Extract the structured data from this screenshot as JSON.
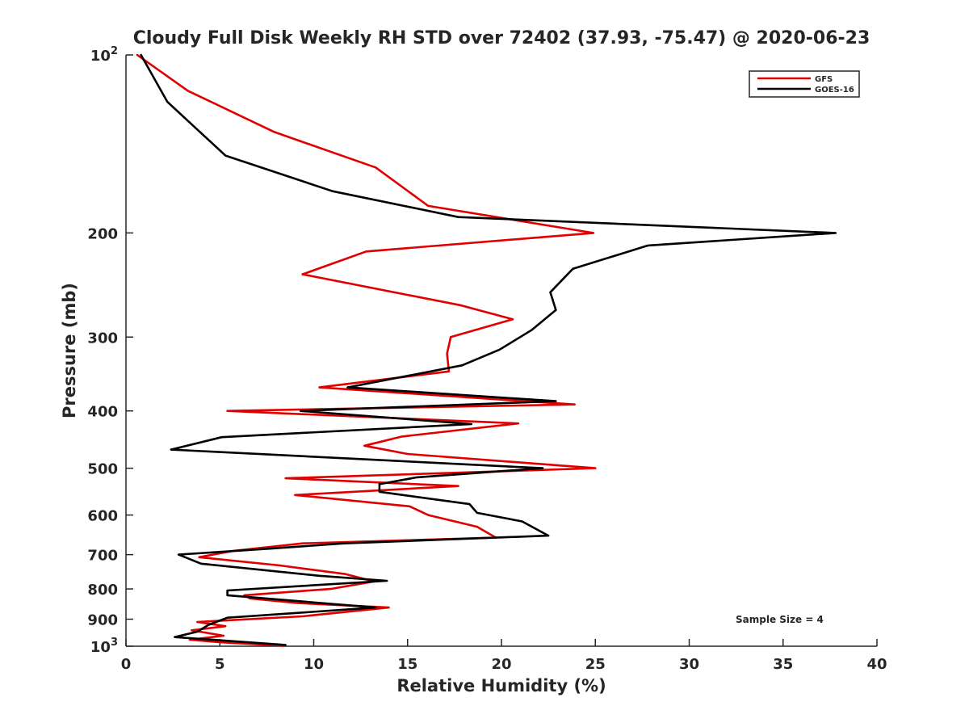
{
  "chart_data": {
    "type": "line",
    "title": "Cloudy Full Disk Weekly RH STD over 72402 (37.93, -75.47) @ 2020-06-23",
    "xlabel": "Relative Humidity (%)",
    "ylabel": "Pressure (mb)",
    "xlim": [
      0,
      40
    ],
    "ylim": [
      100,
      1000
    ],
    "yscale": "log",
    "y_reversed": true,
    "grid": false,
    "legend_position": "top-right",
    "x_ticks": [
      {
        "value": 0,
        "label": "0"
      },
      {
        "value": 5,
        "label": "5"
      },
      {
        "value": 10,
        "label": "10"
      },
      {
        "value": 15,
        "label": "15"
      },
      {
        "value": 20,
        "label": "20"
      },
      {
        "value": 25,
        "label": "25"
      },
      {
        "value": 30,
        "label": "30"
      },
      {
        "value": 35,
        "label": "35"
      },
      {
        "value": 40,
        "label": "40"
      }
    ],
    "y_ticks": [
      {
        "value": 100,
        "base": "10",
        "exp": "2"
      },
      {
        "value": 200,
        "label": "200"
      },
      {
        "value": 300,
        "label": "300"
      },
      {
        "value": 400,
        "label": "400"
      },
      {
        "value": 500,
        "label": "500"
      },
      {
        "value": 600,
        "label": "600"
      },
      {
        "value": 700,
        "label": "700"
      },
      {
        "value": 800,
        "label": "800"
      },
      {
        "value": 900,
        "label": "900"
      },
      {
        "value": 1000,
        "base": "10",
        "exp": "3"
      }
    ],
    "annotation": "Sample Size = 4",
    "series": [
      {
        "name": "GFS",
        "color": "#e00000",
        "points": [
          [
            0.6,
            100
          ],
          [
            3.3,
            115
          ],
          [
            7.9,
            135
          ],
          [
            13.3,
            155
          ],
          [
            16.1,
            180
          ],
          [
            24.9,
            200
          ],
          [
            12.8,
            215
          ],
          [
            9.4,
            235
          ],
          [
            17.8,
            265
          ],
          [
            20.6,
            280
          ],
          [
            17.3,
            300
          ],
          [
            17.1,
            320
          ],
          [
            17.2,
            343
          ],
          [
            10.3,
            365
          ],
          [
            23.9,
            390
          ],
          [
            5.4,
            400
          ],
          [
            20.9,
            420
          ],
          [
            14.7,
            442
          ],
          [
            12.7,
            458
          ],
          [
            15.0,
            473
          ],
          [
            25.0,
            500
          ],
          [
            8.5,
            520
          ],
          [
            17.7,
            536
          ],
          [
            9.0,
            555
          ],
          [
            15.1,
            580
          ],
          [
            16.1,
            600
          ],
          [
            18.7,
            628
          ],
          [
            19.7,
            655
          ],
          [
            9.4,
            670
          ],
          [
            5.7,
            690
          ],
          [
            3.9,
            707
          ],
          [
            8.2,
            730
          ],
          [
            11.7,
            755
          ],
          [
            13.2,
            777
          ],
          [
            10.9,
            800
          ],
          [
            6.3,
            820
          ],
          [
            6.6,
            830
          ],
          [
            9.1,
            845
          ],
          [
            14.0,
            860
          ],
          [
            9.4,
            890
          ],
          [
            3.8,
            910
          ],
          [
            5.3,
            925
          ],
          [
            3.5,
            940
          ],
          [
            5.2,
            960
          ],
          [
            3.4,
            975
          ],
          [
            5.1,
            985
          ],
          [
            8.4,
            998
          ]
        ]
      },
      {
        "name": "GOES-16",
        "color": "#000000",
        "points": [
          [
            0.8,
            100
          ],
          [
            2.2,
            120
          ],
          [
            5.3,
            148
          ],
          [
            11.0,
            170
          ],
          [
            17.7,
            188
          ],
          [
            37.8,
            200
          ],
          [
            27.8,
            210
          ],
          [
            23.8,
            230
          ],
          [
            22.6,
            252
          ],
          [
            22.9,
            270
          ],
          [
            21.6,
            292
          ],
          [
            19.9,
            315
          ],
          [
            17.9,
            335
          ],
          [
            11.8,
            365
          ],
          [
            22.9,
            385
          ],
          [
            9.3,
            400
          ],
          [
            18.4,
            421
          ],
          [
            5.1,
            443
          ],
          [
            2.4,
            465
          ],
          [
            22.2,
            500
          ],
          [
            15.5,
            518
          ],
          [
            13.5,
            532
          ],
          [
            13.5,
            548
          ],
          [
            18.3,
            575
          ],
          [
            18.7,
            595
          ],
          [
            21.1,
            615
          ],
          [
            22.5,
            650
          ],
          [
            11.6,
            670
          ],
          [
            7.9,
            683
          ],
          [
            2.8,
            700
          ],
          [
            4.0,
            725
          ],
          [
            10.3,
            760
          ],
          [
            13.9,
            775
          ],
          [
            5.4,
            805
          ],
          [
            5.4,
            820
          ],
          [
            8.4,
            835
          ],
          [
            13.3,
            860
          ],
          [
            5.4,
            895
          ],
          [
            4.4,
            920
          ],
          [
            3.8,
            945
          ],
          [
            2.6,
            965
          ],
          [
            8.5,
            995
          ]
        ]
      }
    ]
  }
}
